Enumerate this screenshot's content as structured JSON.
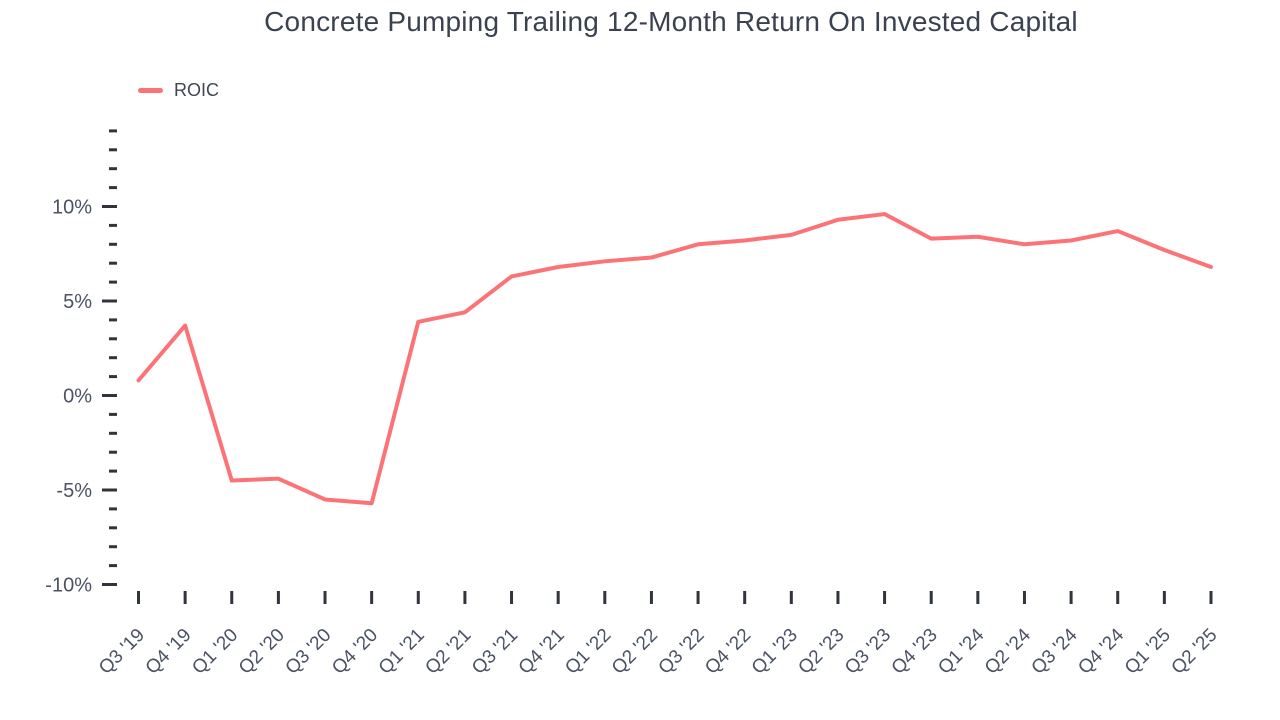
{
  "chart_data": {
    "type": "line",
    "title": "Concrete Pumping Trailing 12-Month Return On Invested Capital",
    "xlabel": "",
    "ylabel": "",
    "categories": [
      "Q3 '19",
      "Q4 '19",
      "Q1 '20",
      "Q2 '20",
      "Q3 '20",
      "Q4 '20",
      "Q1 '21",
      "Q2 '21",
      "Q3 '21",
      "Q4 '21",
      "Q1 '22",
      "Q2 '22",
      "Q3 '22",
      "Q4 '22",
      "Q1 '23",
      "Q2 '23",
      "Q3 '23",
      "Q4 '23",
      "Q1 '24",
      "Q2 '24",
      "Q3 '24",
      "Q4 '24",
      "Q1 '25",
      "Q2 '25"
    ],
    "series": [
      {
        "name": "ROIC",
        "color": "#FC7377",
        "values": [
          0.8,
          3.7,
          -4.5,
          -4.4,
          -5.5,
          -5.7,
          3.9,
          4.4,
          6.3,
          6.8,
          7.1,
          7.3,
          8.0,
          8.2,
          8.5,
          9.3,
          9.6,
          8.3,
          8.4,
          8.0,
          8.2,
          8.7,
          7.7,
          6.8
        ]
      }
    ],
    "y_axis": {
      "min": -10,
      "max": 14,
      "unit": "%",
      "minor_tick_step": 1,
      "major_tick_step": 5,
      "labels": [
        {
          "value": 10,
          "label": "10%"
        },
        {
          "value": 5,
          "label": "5%"
        },
        {
          "value": 0,
          "label": "0%"
        },
        {
          "value": -5,
          "label": "-5%"
        },
        {
          "value": -10,
          "label": "-10%"
        }
      ]
    },
    "grid": false,
    "legend_position": "top-left",
    "colors": {
      "line": "#FC7377",
      "axis_text": "#4A5264",
      "tick": "#30343C",
      "title_text": "#3A4250",
      "background": "#FFFFFF"
    }
  }
}
